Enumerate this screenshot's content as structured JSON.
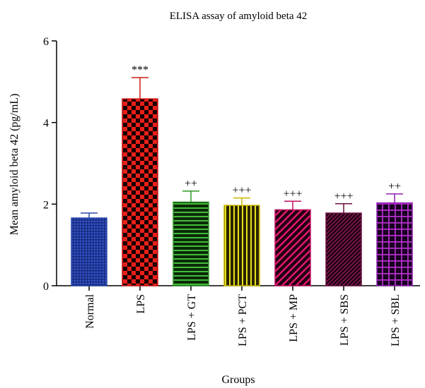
{
  "chart_data": {
    "type": "bar",
    "title": "ELISA assay of amyloid beta 42",
    "xlabel": "Groups",
    "ylabel": "Mean amyloid beta 42 (pg/mL)",
    "ylim": [
      0,
      6
    ],
    "yticks": [
      0,
      2,
      4,
      6
    ],
    "grid": false,
    "categories": [
      "Normal",
      "LPS",
      "LPS + GT",
      "LPS + PCT",
      "LPS + MP",
      "LPS + SBS",
      "LPS + SBL"
    ],
    "values": [
      1.66,
      4.58,
      2.05,
      1.97,
      1.86,
      1.78,
      2.03
    ],
    "errors": [
      0.12,
      0.52,
      0.27,
      0.18,
      0.21,
      0.23,
      0.22
    ],
    "significance": [
      "",
      "***",
      "++",
      "+++",
      "+++",
      "+++",
      "++"
    ],
    "bar_styles": [
      {
        "pattern": "dots",
        "fill": "#3355cc",
        "stroke": "#2a4aa8"
      },
      {
        "pattern": "checker",
        "fill": "#e8201a",
        "stroke": "#d01a14"
      },
      {
        "pattern": "hlines",
        "fill": "#44bb3a",
        "stroke": "#2e9a26"
      },
      {
        "pattern": "vlines",
        "fill": "#e8e020",
        "stroke": "#c8b800"
      },
      {
        "pattern": "diag",
        "fill": "#e0186e",
        "stroke": "#c01060"
      },
      {
        "pattern": "diag-dense",
        "fill": "#8a1850",
        "stroke": "#6a1040"
      },
      {
        "pattern": "grid",
        "fill": "#b030c8",
        "stroke": "#9020b0"
      }
    ]
  }
}
